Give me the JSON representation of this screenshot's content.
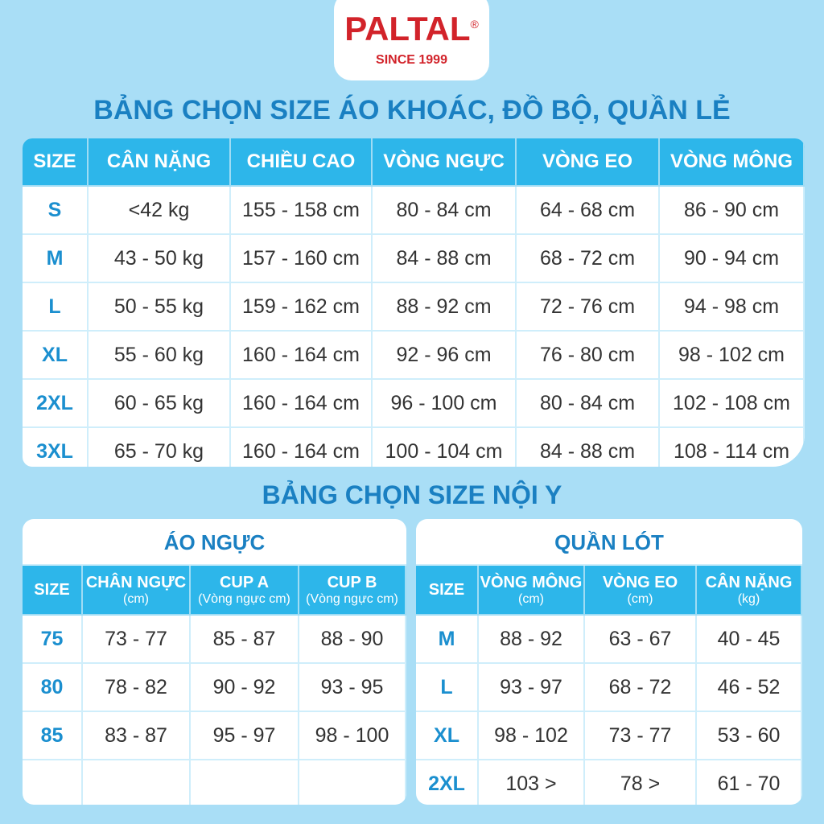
{
  "logo": {
    "brand": "PALTAL",
    "mark": "®",
    "since": "SINCE 1999"
  },
  "outer_table": {
    "title": "BẢNG CHỌN SIZE ÁO KHOÁC, ĐỒ BỘ, QUẦN LẺ",
    "headers": [
      "SIZE",
      "CÂN NẶNG",
      "CHIỀU CAO",
      "VÒNG NGỰC",
      "VÒNG EO",
      "VÒNG MÔNG"
    ],
    "rows": [
      [
        "S",
        "<42 kg",
        "155 - 158 cm",
        "80 - 84 cm",
        "64 - 68 cm",
        "86 - 90 cm"
      ],
      [
        "M",
        "43 - 50 kg",
        "157 - 160 cm",
        "84 - 88 cm",
        "68 - 72 cm",
        "90 - 94 cm"
      ],
      [
        "L",
        "50 - 55 kg",
        "159 - 162 cm",
        "88 - 92 cm",
        "72 - 76 cm",
        "94 - 98 cm"
      ],
      [
        "XL",
        "55 - 60 kg",
        "160 - 164 cm",
        "92 - 96 cm",
        "76 - 80 cm",
        "98 - 102 cm"
      ],
      [
        "2XL",
        "60 - 65 kg",
        "160 - 164 cm",
        "96 - 100 cm",
        "80 - 84 cm",
        "102 - 108 cm"
      ],
      [
        "3XL",
        "65 - 70 kg",
        "160 - 164 cm",
        "100 - 104 cm",
        "84 - 88 cm",
        "108 - 114 cm"
      ]
    ]
  },
  "underwear_title": "BẢNG CHỌN SIZE NỘI Y",
  "bra_table": {
    "title": "ÁO NGỰC",
    "headers": [
      {
        "label": "SIZE"
      },
      {
        "label": "CHÂN NGỰC",
        "unit": "(cm)"
      },
      {
        "label": "CUP A",
        "unit": "(Vòng ngực cm)"
      },
      {
        "label": "CUP B",
        "unit": "(Vòng ngực cm)"
      }
    ],
    "rows": [
      [
        "75",
        "73 - 77",
        "85 - 87",
        "88 - 90"
      ],
      [
        "80",
        "78 - 82",
        "90 - 92",
        "93 - 95"
      ],
      [
        "85",
        "83 - 87",
        "95 - 97",
        "98 - 100"
      ]
    ]
  },
  "panty_table": {
    "title": "QUẦN LÓT",
    "headers": [
      {
        "label": "SIZE"
      },
      {
        "label": "VÒNG MÔNG",
        "unit": "(cm)"
      },
      {
        "label": "VÒNG EO",
        "unit": "(cm)"
      },
      {
        "label": "CÂN NẶNG",
        "unit": "(kg)"
      }
    ],
    "rows": [
      [
        "M",
        "88 - 92",
        "63 - 67",
        "40 - 45"
      ],
      [
        "L",
        "93 - 97",
        "68 - 72",
        "46 - 52"
      ],
      [
        "XL",
        "98 - 102",
        "73 - 77",
        "53 - 60"
      ],
      [
        "2XL",
        "103 >",
        "78 >",
        "61 - 70"
      ]
    ]
  }
}
